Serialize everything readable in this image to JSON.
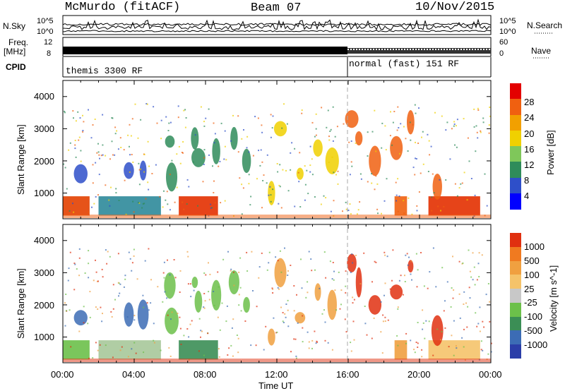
{
  "header": {
    "station": "McMurdo (fitACF)",
    "beam": "Beam 07",
    "date": "10/Nov/2015"
  },
  "top_panels": {
    "nsky_label": "N.Sky",
    "nsky_ticks": [
      "10^5",
      "10^0"
    ],
    "nsearch_label": "N.Search",
    "nsearch_ticks": [
      "10^5",
      "10^0"
    ],
    "freq_label": "Freq.",
    "freq_unit": "[MHz]",
    "freq_ticks": [
      "12",
      "8"
    ],
    "nave_label": "Nave",
    "nave_ticks": [
      "60",
      "0"
    ],
    "cpid_label": "CPID",
    "cpid_segments": [
      {
        "name": "themis 3300 RF",
        "start_hour": 0
      },
      {
        "name": "normal (fast) 151 RF",
        "start_hour": 16
      }
    ]
  },
  "x_axis": {
    "label": "Time UT",
    "ticks": [
      "00:00",
      "04:00",
      "08:00",
      "12:00",
      "16:00",
      "20:00",
      "00:00"
    ]
  },
  "chart_data": [
    {
      "type": "heatmap",
      "name": "power",
      "ylabel": "Slant Range [km]",
      "yticks": [
        "4000",
        "3000",
        "2000",
        "1000"
      ],
      "ylim": [
        200,
        4500
      ],
      "xlim": [
        0,
        24
      ],
      "colorbar_label": "Power [dB]",
      "colorbar_ticks": [
        "28",
        "24",
        "20",
        "16",
        "12",
        "8",
        "4"
      ],
      "colorbar_colors": [
        "#0000ff",
        "#2e4fc9",
        "#2f8c5a",
        "#7fc75a",
        "#f0d000",
        "#f2a000",
        "#f06010",
        "#e30000"
      ]
    },
    {
      "type": "heatmap",
      "name": "velocity",
      "ylabel": "Slant Range [km]",
      "yticks": [
        "4000",
        "3000",
        "2000",
        "1000"
      ],
      "ylim": [
        200,
        4500
      ],
      "xlim": [
        0,
        24
      ],
      "colorbar_label": "Velocity [m s^-1]",
      "colorbar_ticks": [
        "1000",
        "500",
        "100",
        "25",
        "-25",
        "-100",
        "-500",
        "-1000"
      ],
      "colorbar_colors": [
        "#2b3ea8",
        "#3c6cb5",
        "#3b8e55",
        "#6cc04a",
        "#c8c8c8",
        "#f5c36a",
        "#f0a040",
        "#f07a20",
        "#e03010"
      ]
    }
  ]
}
